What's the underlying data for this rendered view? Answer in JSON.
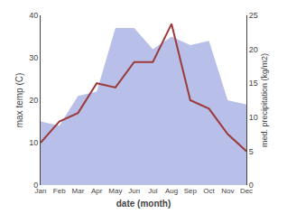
{
  "chart_data": {
    "type": "line",
    "categories": [
      "Jan",
      "Feb",
      "Mar",
      "Apr",
      "May",
      "Jun",
      "Jul",
      "Aug",
      "Sep",
      "Oct",
      "Nov",
      "Dec"
    ],
    "series": [
      {
        "type": "area",
        "color": "#b8bfe8",
        "values": [
          15,
          14,
          21,
          22,
          37,
          37,
          32,
          35,
          33,
          34,
          20,
          19
        ]
      },
      {
        "type": "line",
        "color": "#9b3a3a",
        "values": [
          10,
          15,
          17,
          24,
          23,
          29,
          29,
          38,
          20,
          18,
          12,
          8
        ]
      }
    ],
    "xlabel": "date (month)",
    "ylabel": "max temp (C)",
    "y2label": "med. precipitation (kg/m2)",
    "ylim": [
      0,
      40
    ],
    "yticks": [
      0,
      10,
      20,
      30,
      40
    ],
    "y2lim": [
      0,
      25
    ],
    "y2ticks": [
      0,
      5,
      10,
      15,
      20,
      25
    ],
    "grid": false
  }
}
